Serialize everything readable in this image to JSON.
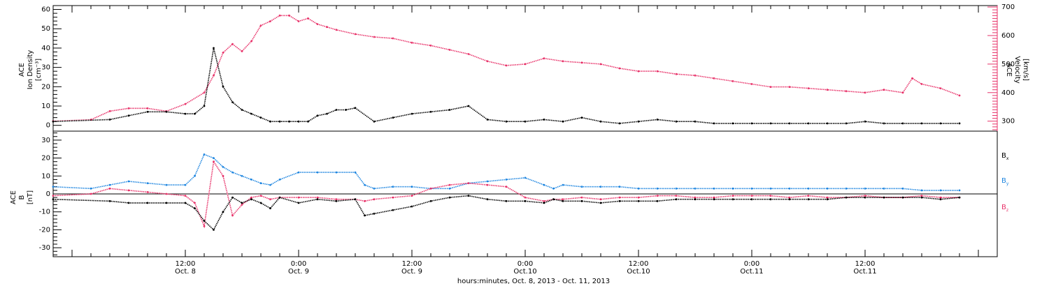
{
  "colors": {
    "black": "#000000",
    "pink": "#e8336a",
    "blue": "#1f86e0"
  },
  "footer": "hours:minutes, Oct. 8, 2013 - Oct. 11, 2013",
  "chart_data": [
    {
      "type": "scatter",
      "panel": "top",
      "ylabel_left": [
        "ACE",
        "Ion Density",
        "[cm⁻³]"
      ],
      "ylabel_right": [
        "ACE",
        "Velocity",
        "[km/s]"
      ],
      "x_unit": "hours since Oct 8 00:00 (2013)",
      "xlim": [
        -2,
        98
      ],
      "ylim_left": [
        -3,
        62
      ],
      "yticks_left": [
        0,
        10,
        20,
        30,
        40,
        50,
        60
      ],
      "ylim_right": [
        265,
        705
      ],
      "yticks_right": [
        300,
        400,
        500,
        600,
        700
      ],
      "series": [
        {
          "name": "Ion Density",
          "axis": "left",
          "color": "#000000",
          "x": [
            -2,
            4,
            6,
            8,
            10,
            12,
            13,
            14,
            15,
            16,
            17,
            18,
            19,
            20,
            21,
            22,
            23,
            24,
            25,
            26,
            27,
            28,
            29,
            30,
            32,
            34,
            36,
            38,
            40,
            42,
            44,
            46,
            48,
            50,
            52,
            54,
            56,
            58,
            60,
            62,
            64,
            66,
            68,
            70,
            72,
            74,
            76,
            78,
            80,
            82,
            84,
            86,
            88,
            90,
            92,
            94
          ],
          "y": [
            2,
            3,
            5,
            7,
            7,
            6,
            6,
            10,
            40,
            20,
            12,
            8,
            6,
            4,
            2,
            2,
            2,
            2,
            2,
            5,
            6,
            8,
            8,
            9,
            2,
            4,
            6,
            7,
            8,
            10,
            3,
            2,
            2,
            3,
            2,
            4,
            2,
            1,
            2,
            3,
            2,
            2,
            1,
            1,
            1,
            1,
            1,
            1,
            1,
            1,
            2,
            1,
            1,
            1,
            1,
            1
          ]
        },
        {
          "name": "Velocity",
          "axis": "right",
          "color": "#e8336a",
          "x": [
            -2,
            2,
            4,
            6,
            8,
            10,
            12,
            14,
            15,
            16,
            17,
            18,
            19,
            20,
            21,
            22,
            23,
            24,
            25,
            26,
            27,
            28,
            30,
            32,
            34,
            36,
            38,
            40,
            42,
            44,
            46,
            48,
            50,
            52,
            54,
            56,
            58,
            60,
            62,
            64,
            66,
            68,
            70,
            72,
            74,
            76,
            78,
            80,
            82,
            84,
            86,
            88,
            89,
            90,
            92,
            94
          ],
          "y": [
            300,
            305,
            335,
            345,
            345,
            335,
            360,
            400,
            460,
            540,
            570,
            545,
            580,
            635,
            650,
            670,
            670,
            650,
            660,
            640,
            630,
            620,
            605,
            595,
            590,
            575,
            565,
            550,
            535,
            510,
            495,
            500,
            520,
            510,
            505,
            500,
            485,
            475,
            475,
            465,
            460,
            450,
            440,
            430,
            420,
            420,
            415,
            410,
            405,
            400,
            410,
            400,
            450,
            430,
            415,
            390
          ]
        }
      ]
    },
    {
      "type": "scatter",
      "panel": "bottom",
      "ylabel": [
        "ACE",
        "B",
        "[nT]"
      ],
      "x_unit": "hours since Oct 8 00:00 (2013)",
      "xlim": [
        -2,
        98
      ],
      "ylim": [
        -35,
        35
      ],
      "yticks": [
        -30,
        -20,
        -10,
        0,
        10,
        20,
        30
      ],
      "legend": [
        "Bx",
        "By",
        "Bz"
      ],
      "legend_placement": "right",
      "series": [
        {
          "name": "Bx",
          "color": "#000000",
          "x": [
            -2,
            4,
            6,
            8,
            10,
            12,
            13,
            14,
            15,
            16,
            17,
            18,
            19,
            20,
            21,
            22,
            24,
            26,
            28,
            30,
            31,
            32,
            34,
            36,
            38,
            40,
            42,
            44,
            46,
            48,
            50,
            51,
            52,
            54,
            56,
            58,
            60,
            62,
            64,
            66,
            68,
            70,
            72,
            74,
            76,
            78,
            80,
            82,
            84,
            86,
            88,
            90,
            92,
            94
          ],
          "y": [
            -3,
            -4,
            -5,
            -5,
            -5,
            -5,
            -8,
            -15,
            -20,
            -10,
            -2,
            -5,
            -3,
            -5,
            -8,
            -2,
            -5,
            -3,
            -4,
            -3,
            -12,
            -11,
            -9,
            -7,
            -4,
            -2,
            -1,
            -3,
            -4,
            -4,
            -5,
            -3,
            -4,
            -4,
            -5,
            -4,
            -4,
            -4,
            -3,
            -3,
            -3,
            -3,
            -3,
            -3,
            -3,
            -3,
            -3,
            -2,
            -2,
            -2,
            -2,
            -2,
            -3,
            -2
          ]
        },
        {
          "name": "By",
          "color": "#1f86e0",
          "x": [
            -2,
            2,
            4,
            6,
            8,
            10,
            12,
            13,
            14,
            15,
            16,
            17,
            18,
            19,
            20,
            21,
            22,
            24,
            26,
            28,
            30,
            31,
            32,
            34,
            36,
            38,
            40,
            42,
            44,
            46,
            48,
            50,
            51,
            52,
            54,
            56,
            58,
            60,
            62,
            64,
            66,
            68,
            70,
            72,
            74,
            76,
            78,
            80,
            82,
            84,
            86,
            88,
            90,
            92,
            94
          ],
          "y": [
            4,
            3,
            5,
            7,
            6,
            5,
            5,
            10,
            22,
            20,
            15,
            12,
            10,
            8,
            6,
            5,
            8,
            12,
            12,
            12,
            12,
            5,
            3,
            4,
            4,
            3,
            3,
            6,
            7,
            8,
            9,
            5,
            3,
            5,
            4,
            4,
            4,
            3,
            3,
            3,
            3,
            3,
            3,
            3,
            3,
            3,
            3,
            3,
            3,
            3,
            3,
            3,
            2,
            2,
            2
          ]
        },
        {
          "name": "Bz",
          "color": "#e8336a",
          "x": [
            -2,
            2,
            4,
            6,
            8,
            10,
            12,
            13,
            14,
            15,
            16,
            17,
            18,
            19,
            20,
            21,
            22,
            24,
            26,
            28,
            30,
            31,
            32,
            34,
            36,
            38,
            40,
            42,
            44,
            46,
            48,
            50,
            51,
            52,
            54,
            56,
            58,
            60,
            62,
            64,
            66,
            68,
            70,
            72,
            74,
            76,
            78,
            80,
            82,
            84,
            86,
            88,
            90,
            92,
            94
          ],
          "y": [
            -1,
            0,
            3,
            2,
            1,
            0,
            -1,
            -5,
            -18,
            18,
            10,
            -12,
            -6,
            -2,
            -1,
            -3,
            -2,
            -2,
            -2,
            -3,
            -3,
            -4,
            -3,
            -2,
            -1,
            3,
            5,
            6,
            5,
            4,
            -2,
            -4,
            -3,
            -3,
            -2,
            -3,
            -2,
            -2,
            -1,
            -1,
            -2,
            -2,
            -1,
            -1,
            -1,
            -2,
            -1,
            -2,
            -2,
            -1,
            -2,
            -2,
            -1,
            -2,
            -2
          ]
        }
      ]
    }
  ],
  "xaxis": {
    "ticks": [
      {
        "x": 12,
        "line1": "12:00",
        "line2": "Oct. 8"
      },
      {
        "x": 24,
        "line1": "0:00",
        "line2": "Oct. 9"
      },
      {
        "x": 36,
        "line1": "12:00",
        "line2": "Oct. 9"
      },
      {
        "x": 48,
        "line1": "0:00",
        "line2": "Oct.10"
      },
      {
        "x": 60,
        "line1": "12:00",
        "line2": "Oct.10"
      },
      {
        "x": 72,
        "line1": "0:00",
        "line2": "Oct.11"
      },
      {
        "x": 84,
        "line1": "12:00",
        "line2": "Oct.11"
      }
    ]
  }
}
